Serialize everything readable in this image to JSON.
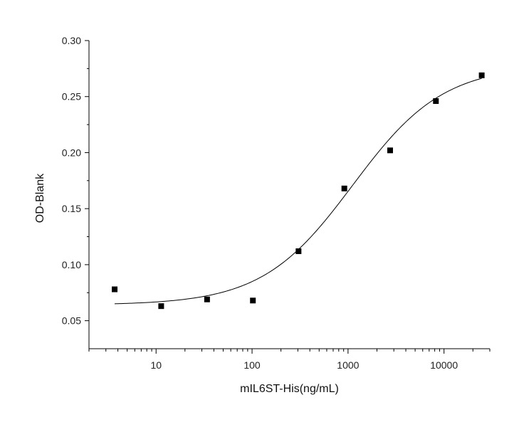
{
  "chart_data": {
    "type": "scatter",
    "xlabel": "mIL6ST-His(ng/mL)",
    "ylabel": "OD-Blank",
    "x_scale": "log",
    "xlim": [
      2,
      30000
    ],
    "ylim": [
      0.025,
      0.3
    ],
    "x_major_ticks": [
      10,
      100,
      1000,
      10000
    ],
    "x_tick_labels": [
      "10",
      "100",
      "1000",
      "10000"
    ],
    "y_major_ticks": [
      0.05,
      0.1,
      0.15,
      0.2,
      0.25,
      0.3
    ],
    "y_tick_labels": [
      "0.05",
      "0.10",
      "0.15",
      "0.20",
      "0.25",
      "0.30"
    ],
    "grid": false,
    "series": [
      {
        "values": [
          {
            "x": 3.7,
            "y": 0.078
          },
          {
            "x": 11.3,
            "y": 0.063
          },
          {
            "x": 34,
            "y": 0.069
          },
          {
            "x": 102,
            "y": 0.068
          },
          {
            "x": 305,
            "y": 0.112
          },
          {
            "x": 915,
            "y": 0.168
          },
          {
            "x": 2745,
            "y": 0.202
          },
          {
            "x": 8230,
            "y": 0.246
          },
          {
            "x": 24700,
            "y": 0.269
          }
        ]
      }
    ],
    "fit_curve": {
      "model": "4PL",
      "bottom": 0.064,
      "top": 0.278,
      "ec50": 1120,
      "hill": 0.92,
      "x_range": [
        3.7,
        24700
      ]
    },
    "marker_color": "#000000",
    "line_color": "#000000"
  }
}
